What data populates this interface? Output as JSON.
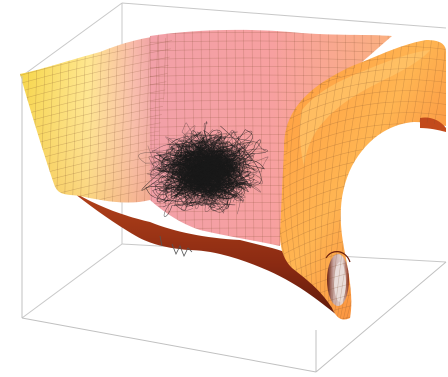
{
  "figure": {
    "kind": "3d-surface-plot",
    "colors": {
      "background": "#ffffff",
      "box_edges": "#c8c8c8",
      "mesh_lines": "#7a4a2a",
      "tangle_lines": "#1a1a1a",
      "surface_light": "#ffe27a",
      "surface_pink": "#f4a9a0",
      "surface_orange": "#ff8a3a",
      "surface_dark": "#7a1f0d",
      "tube_inner": "#d9c7c4"
    },
    "texture": {
      "tangle_strand_count": 230
    }
  }
}
